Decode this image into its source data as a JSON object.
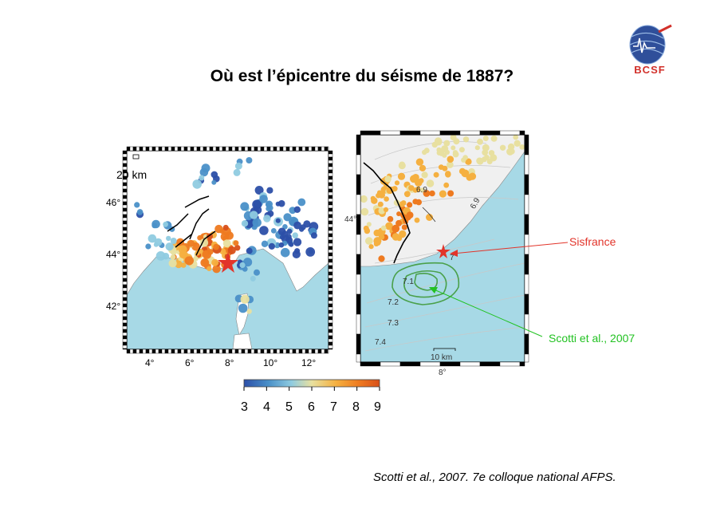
{
  "title": "Où est l’épicentre du séisme de 1887?",
  "logo": {
    "text": "BCSF",
    "icon": "seismic-globe-icon"
  },
  "left_map": {
    "scale_label": "20 km",
    "lat_labels": [
      "46°",
      "44°",
      "42°"
    ],
    "lon_labels": [
      "4°",
      "6°",
      "8°",
      "10°",
      "12°"
    ]
  },
  "right_map": {
    "lat_label": "44°",
    "lon_label": "8°",
    "scale_label": "10 km",
    "contour_labels": [
      "6.9",
      "6.9",
      "7",
      "7.1",
      "7.2",
      "7.3",
      "7.4"
    ]
  },
  "colorbar": {
    "ticks": [
      "3",
      "4",
      "5",
      "6",
      "7",
      "8",
      "9"
    ],
    "colors": [
      "#2c4fa8",
      "#4a90c8",
      "#8fcbe0",
      "#e8e0a0",
      "#f5b040",
      "#ee7a20",
      "#d8501a"
    ]
  },
  "annotations": {
    "sisfrance": "Sisfrance",
    "sisfrance_color": "#e2342a",
    "scotti": "Scotti et al., 2007",
    "scotti_color": "#22c222"
  },
  "caption": "Scotti et al., 2007. 7e colloque national AFPS.",
  "colors": {
    "sea": "#a7d9e6",
    "land": "#ffffff",
    "land_grey": "#eeeeee"
  }
}
